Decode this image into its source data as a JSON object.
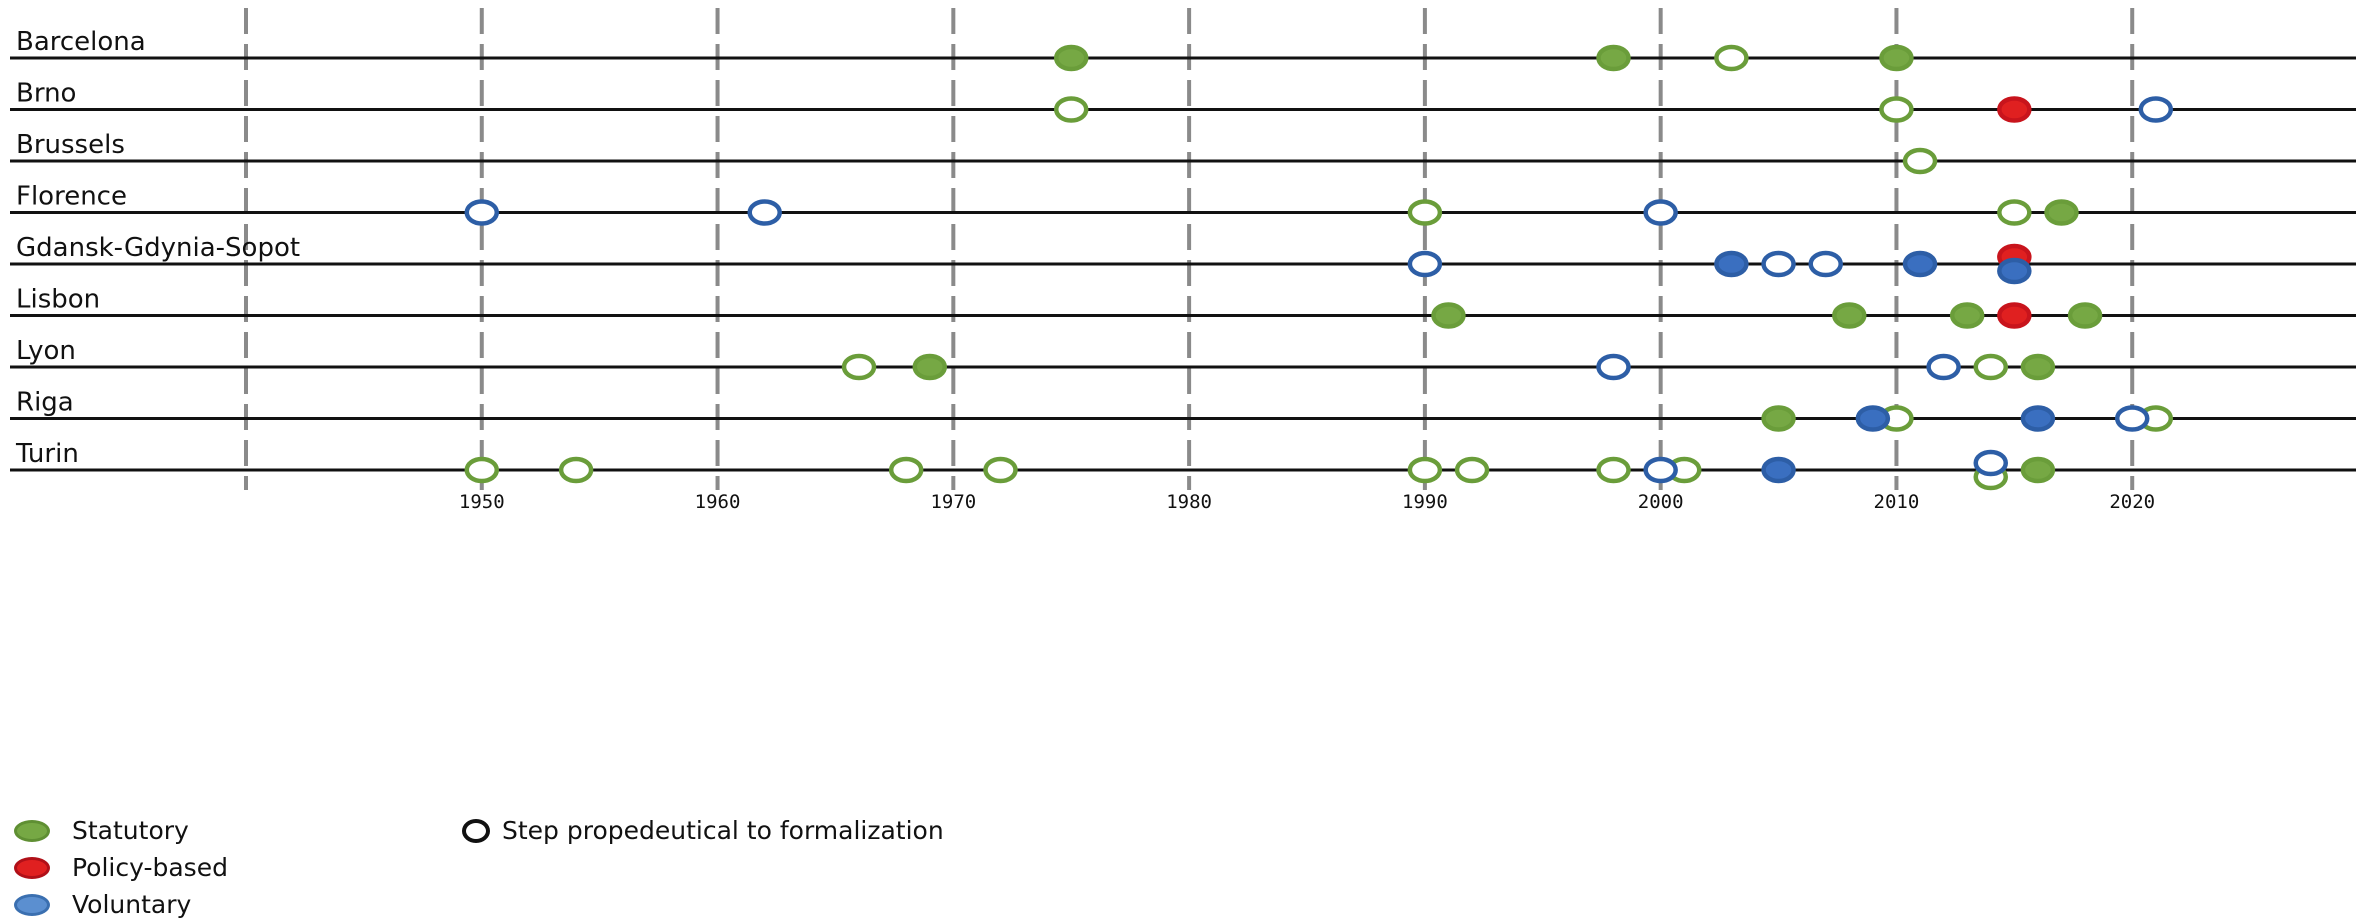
{
  "colors": {
    "statutory": "#6a9d3a",
    "statutory_fill": "#76a844",
    "policy": "#c8141c",
    "policy_fill": "#e02020",
    "voluntary": "#2d5ea6",
    "voluntary_fill": "#3a6fc0",
    "legend_voluntary": "#5b8fd0",
    "gridline": "#8a8a8a",
    "rowline": "#111111"
  },
  "legend": {
    "statutory": "Statutory",
    "policy": "Policy-based",
    "voluntary": "Voluntary",
    "step": "Step propedeutical to formalization"
  },
  "chart_data": {
    "type": "scatter",
    "title": "",
    "xlabel": "",
    "ylabel": "",
    "xlim": [
      1940,
      2030
    ],
    "grid": true,
    "x_ticks": [
      1950,
      1960,
      1970,
      1980,
      1990,
      2000,
      2010,
      2020
    ],
    "categories": [
      "Barcelona",
      "Brno",
      "Brussels",
      "Florence",
      "Gdansk-Gdynia-Sopot",
      "Lisbon",
      "Lyon",
      "Riga",
      "Turin"
    ],
    "series": [
      {
        "name": "Statutory",
        "marker": "filled",
        "points": [
          {
            "city": "Barcelona",
            "year": 1975
          },
          {
            "city": "Barcelona",
            "year": 1998
          },
          {
            "city": "Barcelona",
            "year": 2010
          },
          {
            "city": "Florence",
            "year": 2017
          },
          {
            "city": "Lisbon",
            "year": 1991
          },
          {
            "city": "Lisbon",
            "year": 2008
          },
          {
            "city": "Lisbon",
            "year": 2013
          },
          {
            "city": "Lisbon",
            "year": 2018
          },
          {
            "city": "Lyon",
            "year": 1969
          },
          {
            "city": "Lyon",
            "year": 2016
          },
          {
            "city": "Riga",
            "year": 2005
          },
          {
            "city": "Turin",
            "year": 2016
          }
        ]
      },
      {
        "name": "Statutory",
        "marker": "hollow",
        "points": [
          {
            "city": "Barcelona",
            "year": 2003
          },
          {
            "city": "Brno",
            "year": 1975
          },
          {
            "city": "Brno",
            "year": 2010
          },
          {
            "city": "Brussels",
            "year": 2011
          },
          {
            "city": "Florence",
            "year": 1990
          },
          {
            "city": "Florence",
            "year": 2015
          },
          {
            "city": "Lyon",
            "year": 1966
          },
          {
            "city": "Lyon",
            "year": 2014
          },
          {
            "city": "Riga",
            "year": 2010
          },
          {
            "city": "Riga",
            "year": 2021
          },
          {
            "city": "Turin",
            "year": 1950
          },
          {
            "city": "Turin",
            "year": 1954
          },
          {
            "city": "Turin",
            "year": 1968
          },
          {
            "city": "Turin",
            "year": 1972
          },
          {
            "city": "Turin",
            "year": 1990
          },
          {
            "city": "Turin",
            "year": 1992
          },
          {
            "city": "Turin",
            "year": 1998
          },
          {
            "city": "Turin",
            "year": 2001
          },
          {
            "city": "Turin",
            "year": 2014,
            "offset": "below"
          }
        ]
      },
      {
        "name": "Policy-based",
        "marker": "filled",
        "points": [
          {
            "city": "Brno",
            "year": 2015
          },
          {
            "city": "Gdansk-Gdynia-Sopot",
            "year": 2015,
            "offset": "above"
          },
          {
            "city": "Lisbon",
            "year": 2015
          }
        ]
      },
      {
        "name": "Voluntary",
        "marker": "filled",
        "points": [
          {
            "city": "Gdansk-Gdynia-Sopot",
            "year": 2003
          },
          {
            "city": "Gdansk-Gdynia-Sopot",
            "year": 2011
          },
          {
            "city": "Gdansk-Gdynia-Sopot",
            "year": 2015,
            "offset": "below"
          },
          {
            "city": "Riga",
            "year": 2009
          },
          {
            "city": "Riga",
            "year": 2016
          },
          {
            "city": "Turin",
            "year": 2005
          }
        ]
      },
      {
        "name": "Voluntary",
        "marker": "hollow",
        "points": [
          {
            "city": "Brno",
            "year": 2021
          },
          {
            "city": "Florence",
            "year": 1950
          },
          {
            "city": "Florence",
            "year": 1962
          },
          {
            "city": "Florence",
            "year": 2000
          },
          {
            "city": "Gdansk-Gdynia-Sopot",
            "year": 1990
          },
          {
            "city": "Gdansk-Gdynia-Sopot",
            "year": 2005
          },
          {
            "city": "Gdansk-Gdynia-Sopot",
            "year": 2007
          },
          {
            "city": "Lyon",
            "year": 1998
          },
          {
            "city": "Lyon",
            "year": 2012
          },
          {
            "city": "Riga",
            "year": 2020
          },
          {
            "city": "Turin",
            "year": 2000
          },
          {
            "city": "Turin",
            "year": 2014,
            "offset": "above"
          }
        ]
      }
    ]
  }
}
